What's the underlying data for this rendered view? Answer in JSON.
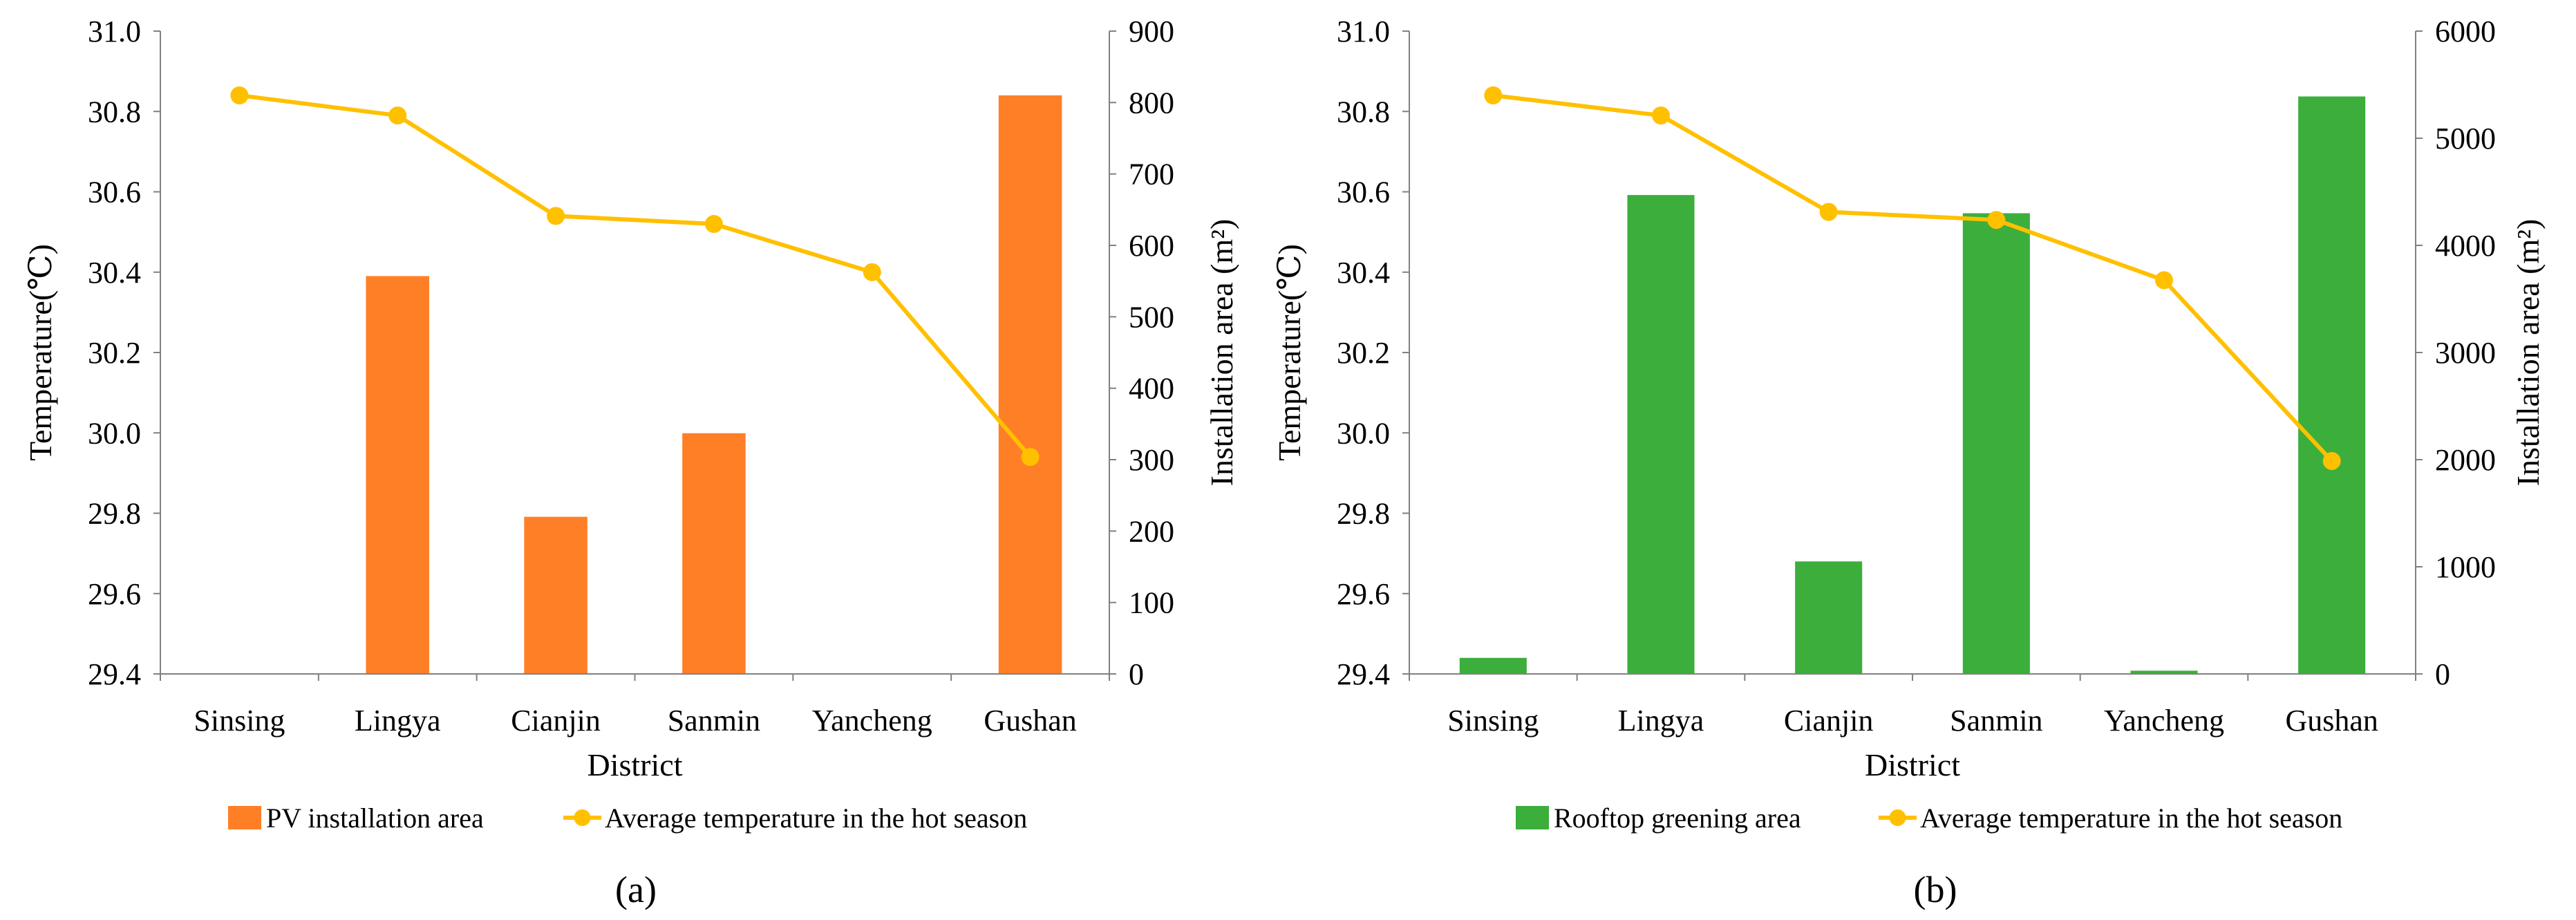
{
  "chart_data": [
    {
      "type": "bar+line",
      "panel_label": "(a)",
      "xlabel": "District",
      "ylabel_left": "Temperature(℃)",
      "ylabel_right": "Installation area (m²)",
      "categories": [
        "Sinsing",
        "Lingya",
        "Cianjin",
        "Sanmin",
        "Yancheng",
        "Gushan"
      ],
      "ylim_left": [
        29.4,
        31.0
      ],
      "yticks_left": [
        "29.4",
        "29.6",
        "29.8",
        "30.0",
        "30.2",
        "30.4",
        "30.6",
        "30.8",
        "31.0"
      ],
      "ylim_right": [
        0,
        900
      ],
      "yticks_right": [
        "0",
        "100",
        "200",
        "300",
        "400",
        "500",
        "600",
        "700",
        "800",
        "900"
      ],
      "series": [
        {
          "name": "PV installation area",
          "kind": "bar",
          "axis": "right",
          "color": "#ff7f27",
          "values": [
            0,
            557,
            220,
            337,
            0,
            810
          ]
        },
        {
          "name": "Average temperature in the hot season",
          "kind": "line",
          "axis": "left",
          "color": "#ffc000",
          "values": [
            30.84,
            30.79,
            30.54,
            30.52,
            30.4,
            29.94
          ]
        }
      ],
      "legend_position": "bottom"
    },
    {
      "type": "bar+line",
      "panel_label": "(b)",
      "xlabel": "District",
      "ylabel_left": "Temperature(℃)",
      "ylabel_right": "Installation area (m²)",
      "categories": [
        "Sinsing",
        "Lingya",
        "Cianjin",
        "Sanmin",
        "Yancheng",
        "Gushan"
      ],
      "ylim_left": [
        29.4,
        31.0
      ],
      "yticks_left": [
        "29.4",
        "29.6",
        "29.8",
        "30.0",
        "30.2",
        "30.4",
        "30.6",
        "30.8",
        "31.0"
      ],
      "ylim_right": [
        0,
        6000
      ],
      "yticks_right": [
        "0",
        "1000",
        "2000",
        "3000",
        "4000",
        "5000",
        "6000"
      ],
      "series": [
        {
          "name": "Rooftop greening area",
          "kind": "bar",
          "axis": "right",
          "color": "#3cae3c",
          "values": [
            150,
            4470,
            1050,
            4300,
            30,
            5390
          ]
        },
        {
          "name": "Average temperature in the hot season",
          "kind": "line",
          "axis": "left",
          "color": "#ffc000",
          "values": [
            30.84,
            30.79,
            30.55,
            30.53,
            30.38,
            29.93
          ]
        }
      ],
      "legend_position": "bottom"
    }
  ]
}
